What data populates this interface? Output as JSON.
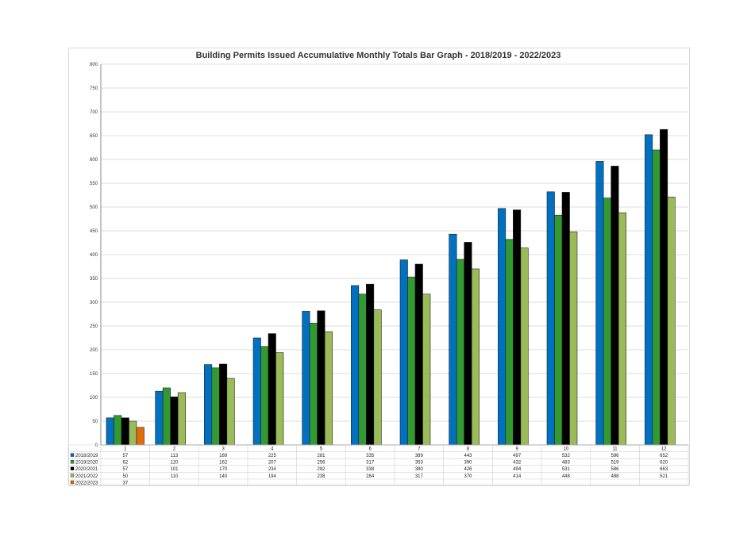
{
  "chart_data": {
    "type": "bar",
    "title": "Building Permits Issued Accumulative Monthly Totals Bar Graph - 2018/2019 - 2022/2023",
    "xlabel": "",
    "ylabel": "",
    "ylim": [
      0,
      800
    ],
    "yticks": [
      0,
      50,
      100,
      150,
      200,
      250,
      300,
      350,
      400,
      450,
      500,
      550,
      600,
      650,
      700,
      750,
      800
    ],
    "grid": true,
    "legend": "data-table-bottom",
    "categories": [
      "1",
      "2",
      "3",
      "4",
      "5",
      "6",
      "7",
      "8",
      "9",
      "10",
      "11",
      "12"
    ],
    "series": [
      {
        "name": "2018/2019",
        "color": "#0070c0",
        "values": [
          57,
          113,
          169,
          225,
          281,
          335,
          389,
          443,
          497,
          532,
          596,
          652
        ]
      },
      {
        "name": "2019/2020",
        "color": "#339933",
        "values": [
          62,
          120,
          162,
          207,
          256,
          317,
          353,
          390,
          432,
          483,
          519,
          620
        ]
      },
      {
        "name": "2020/2021",
        "color": "#000000",
        "values": [
          57,
          101,
          170,
          234,
          282,
          338,
          380,
          426,
          494,
          531,
          586,
          663
        ]
      },
      {
        "name": "2021/2022",
        "color": "#9bbb59",
        "values": [
          50,
          110,
          140,
          194,
          238,
          284,
          317,
          370,
          414,
          448,
          488,
          521
        ]
      },
      {
        "name": "2022/2023",
        "color": "#e36c09",
        "values": [
          37,
          null,
          null,
          null,
          null,
          null,
          null,
          null,
          null,
          null,
          null,
          null
        ]
      }
    ]
  }
}
